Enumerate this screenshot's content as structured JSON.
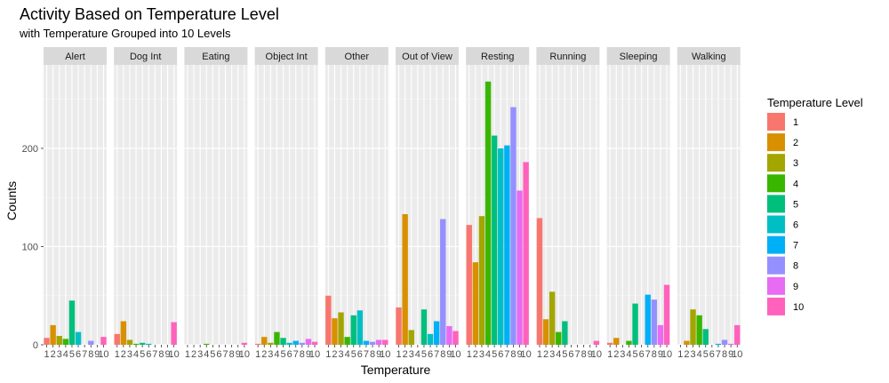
{
  "chart_data": {
    "type": "bar",
    "title": "Activity Based on Temperature Level",
    "subtitle": "with Temperature Grouped into 10 Levels",
    "xlabel": "Temperature",
    "ylabel": "Counts",
    "ylim": [
      0,
      285
    ],
    "yticks": [
      0,
      100,
      200
    ],
    "x_categories": [
      "1",
      "2",
      "3",
      "4",
      "5",
      "6",
      "7",
      "8",
      "9",
      "10"
    ],
    "legend": {
      "title": "Temperature Level",
      "position": "right",
      "entries": [
        {
          "label": "1",
          "color": "#F8766D"
        },
        {
          "label": "2",
          "color": "#D89000"
        },
        {
          "label": "3",
          "color": "#A3A500"
        },
        {
          "label": "4",
          "color": "#39B600"
        },
        {
          "label": "5",
          "color": "#00BF7D"
        },
        {
          "label": "6",
          "color": "#00BFC4"
        },
        {
          "label": "7",
          "color": "#00B0F6"
        },
        {
          "label": "8",
          "color": "#9590FF"
        },
        {
          "label": "9",
          "color": "#E76BF3"
        },
        {
          "label": "10",
          "color": "#FF62BC"
        }
      ]
    },
    "facets": [
      {
        "name": "Alert",
        "values": [
          7,
          20,
          9,
          6,
          45,
          13,
          0,
          4,
          0,
          8
        ]
      },
      {
        "name": "Dog Int",
        "values": [
          11,
          24,
          5,
          1,
          2,
          1,
          0,
          0,
          0,
          23
        ]
      },
      {
        "name": "Eating",
        "values": [
          0,
          0,
          0,
          1,
          0,
          0,
          0,
          0,
          0,
          2
        ]
      },
      {
        "name": "Object Int",
        "values": [
          1,
          8,
          2,
          13,
          7,
          2,
          4,
          2,
          6,
          3
        ]
      },
      {
        "name": "Other",
        "values": [
          50,
          27,
          33,
          8,
          30,
          35,
          4,
          3,
          5,
          5
        ]
      },
      {
        "name": "Out of View",
        "values": [
          38,
          133,
          15,
          0,
          36,
          11,
          24,
          128,
          19,
          14
        ]
      },
      {
        "name": "Resting",
        "values": [
          122,
          84,
          131,
          268,
          213,
          200,
          203,
          242,
          157,
          186
        ]
      },
      {
        "name": "Running",
        "values": [
          129,
          26,
          54,
          13,
          24,
          0,
          0,
          0,
          0,
          4
        ]
      },
      {
        "name": "Sleeping",
        "values": [
          2,
          7,
          0,
          4,
          42,
          0,
          51,
          46,
          20,
          61
        ]
      },
      {
        "name": "Walking",
        "values": [
          0,
          4,
          36,
          30,
          16,
          0,
          1,
          5,
          1,
          20
        ]
      }
    ]
  }
}
